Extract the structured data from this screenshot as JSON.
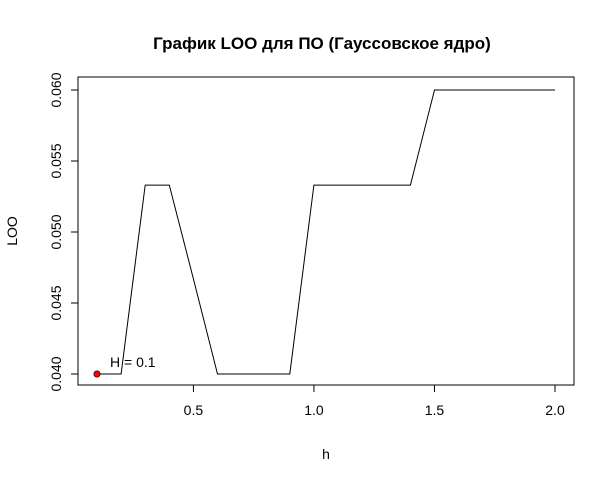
{
  "chart_data": {
    "type": "line",
    "title": "График LOO для ПО (Гауссовское ядро)",
    "xlabel": "h",
    "ylabel": "LOO",
    "xlim": [
      0.1,
      2.0
    ],
    "ylim": [
      0.04,
      0.06
    ],
    "xticks": [
      "0.5",
      "1.0",
      "1.5",
      "2.0"
    ],
    "yticks": [
      "0.040",
      "0.045",
      "0.050",
      "0.055",
      "0.060"
    ],
    "grid": false,
    "series": [
      {
        "line_color": "#000000",
        "x": [
          0.1,
          0.2,
          0.3,
          0.4,
          0.5,
          0.6,
          0.7,
          0.8,
          0.9,
          1.0,
          1.1,
          1.2,
          1.3,
          1.4,
          1.5,
          1.6,
          1.7,
          1.8,
          1.9,
          2.0
        ],
        "y": [
          0.04,
          0.04,
          0.0533,
          0.0533,
          0.0467,
          0.04,
          0.04,
          0.04,
          0.04,
          0.0533,
          0.0533,
          0.0533,
          0.0533,
          0.0533,
          0.06,
          0.06,
          0.06,
          0.06,
          0.06,
          0.06
        ]
      }
    ],
    "highlight": {
      "x": 0.1,
      "y": 0.04,
      "color": "#ff0000",
      "label": "H = 0.1"
    }
  }
}
